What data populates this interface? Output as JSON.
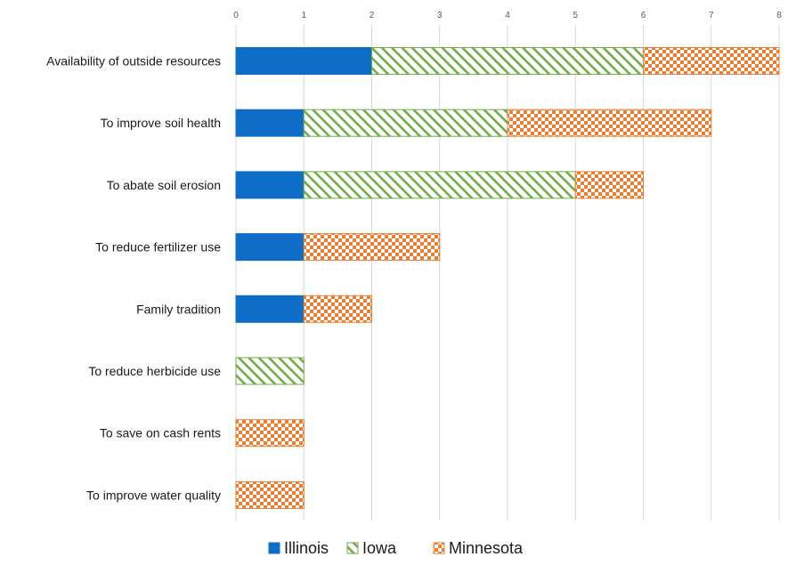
{
  "chart_data": {
    "type": "bar",
    "orientation": "horizontal",
    "stacked": true,
    "categories": [
      "Availability of outside resources",
      "To improve soil health",
      "To abate soil erosion",
      "To reduce fertilizer use",
      "Family tradition",
      "To reduce herbicide use",
      "To save on cash rents",
      "To improve water quality"
    ],
    "series": [
      {
        "name": "Illinois",
        "color": "#0e6ec7",
        "fill_style": "solid",
        "values": [
          2,
          1,
          1,
          1,
          1,
          0,
          0,
          0
        ]
      },
      {
        "name": "Iowa",
        "color": "#70ad47",
        "fill_style": "diagonal-hatch",
        "values": [
          4,
          3,
          4,
          0,
          0,
          1,
          0,
          0
        ]
      },
      {
        "name": "Minnesota",
        "color": "#ed7d31",
        "fill_style": "checkerboard",
        "values": [
          2,
          3,
          1,
          2,
          1,
          0,
          1,
          1
        ]
      }
    ],
    "x_ticks": [
      0,
      1,
      2,
      3,
      4,
      5,
      6,
      7,
      8
    ],
    "xlim": [
      0,
      8
    ],
    "x_axis_position": "top",
    "grid": true,
    "legend_position": "bottom",
    "title": "",
    "xlabel": "",
    "ylabel": ""
  }
}
